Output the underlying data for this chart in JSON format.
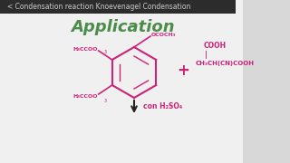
{
  "bg_color": "#f0f0f0",
  "header_bg": "#2c2c2c",
  "header_text": "< Condensation reaction Knoevenagel Condensation",
  "header_fontsize": 5.5,
  "header_text_color": "#cccccc",
  "title_text": "Application",
  "title_color": "#4a8c4a",
  "title_fontsize": 13,
  "chem_color": "#cc2277",
  "sidebar_color": "#c0c0c0",
  "arrow_color": "#222222",
  "catalyst_text": "con H₂SO₄",
  "plus_symbol": "+",
  "reagent1_line1": "COOH",
  "reagent1_line2": "|",
  "reagent1_line3": "CH₃CH(CN)COOH",
  "group_top_right": "OCOCH₃",
  "group_top_left": "H₃CCOO",
  "sub_top_left": "3",
  "group_bot_left": "H₃CCOO",
  "sub_bot_left": "3"
}
